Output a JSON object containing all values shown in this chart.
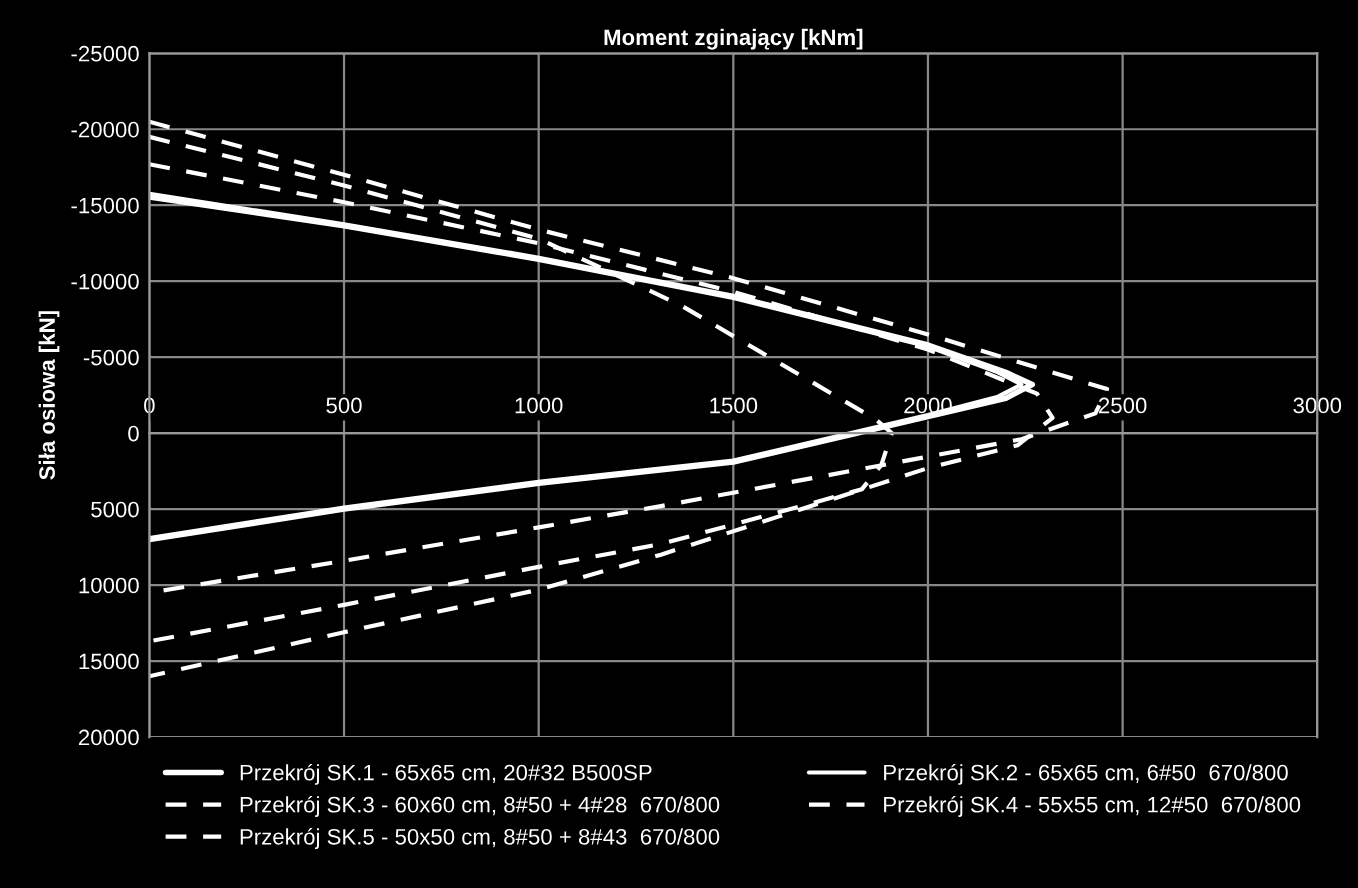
{
  "chart_data": {
    "type": "line",
    "title": "Moment zginający [kNm]",
    "ylabel": "Siła osiowa [kN]",
    "xlim": [
      0,
      3000
    ],
    "xticks": [
      0,
      500,
      1000,
      1500,
      2000,
      2500,
      3000
    ],
    "ylim": [
      20000,
      -25000
    ],
    "yticks": [
      -25000,
      -20000,
      -15000,
      -10000,
      -5000,
      0,
      5000,
      10000,
      15000,
      20000
    ],
    "grid": true,
    "legend": "bottom",
    "marker": "none",
    "series": [
      {
        "name": "Przekrój SK.1 - 65x65 cm, 20#32 B500SP",
        "color": "#ffffff",
        "line_style": "solid",
        "x": [
          0,
          500,
          1000,
          1500,
          2000,
          2200,
          2268,
          2200,
          2000,
          1500,
          1000,
          500,
          0
        ],
        "values": [
          -15700,
          -13700,
          -11500,
          -9000,
          -5800,
          -4000,
          -3200,
          -2300,
          -1100,
          1900,
          3300,
          5000,
          7000
        ]
      },
      {
        "name": "Przekrój SK.2 - 65x65 cm, 6#50  670/800",
        "color": "#ffffff",
        "line_style": "solid",
        "x": [
          0,
          500,
          1000,
          1500,
          2000,
          2180,
          2240,
          2180,
          2000,
          1500,
          1000,
          500,
          0
        ],
        "values": [
          -15500,
          -13600,
          -11400,
          -8900,
          -5700,
          -4000,
          -3200,
          -2400,
          -1200,
          1800,
          3200,
          4900,
          6900
        ]
      },
      {
        "name": "Przekrój SK.3 - 60x60 cm, 8#50 + 4#28  670/800",
        "color": "#ffffff",
        "line_style": "dashed",
        "x": [
          0,
          500,
          1000,
          1500,
          2000,
          2460,
          2430,
          2240,
          1800,
          1314,
          1000,
          500,
          0
        ],
        "values": [
          -20500,
          -17000,
          -13400,
          -10200,
          -6500,
          -2900,
          -1300,
          400,
          2500,
          4800,
          6200,
          8400,
          10500
        ]
      },
      {
        "name": "Przekrój SK.4 - 55x55 cm, 12#50  670/800",
        "color": "#ffffff",
        "line_style": "dashed",
        "x": [
          0,
          500,
          1000,
          1500,
          2000,
          2280,
          2320,
          2230,
          2000,
          1314,
          1000,
          500,
          0
        ],
        "values": [
          -17700,
          -15200,
          -12500,
          -9300,
          -5500,
          -2600,
          -1000,
          800,
          2300,
          8000,
          10300,
          13100,
          16000
        ]
      },
      {
        "name": "Przekrój SK.5 - 50x50 cm, 8#50 + 8#43  670/800",
        "color": "#ffffff",
        "line_style": "dashed",
        "x": [
          0,
          500,
          1000,
          1366,
          1866,
          1907,
          1880,
          1830,
          1675,
          1314,
          1000,
          500,
          0
        ],
        "values": [
          -19500,
          -16300,
          -12800,
          -8400,
          -900,
          0,
          2100,
          3700,
          4800,
          7300,
          8800,
          11300,
          13700
        ]
      }
    ]
  }
}
